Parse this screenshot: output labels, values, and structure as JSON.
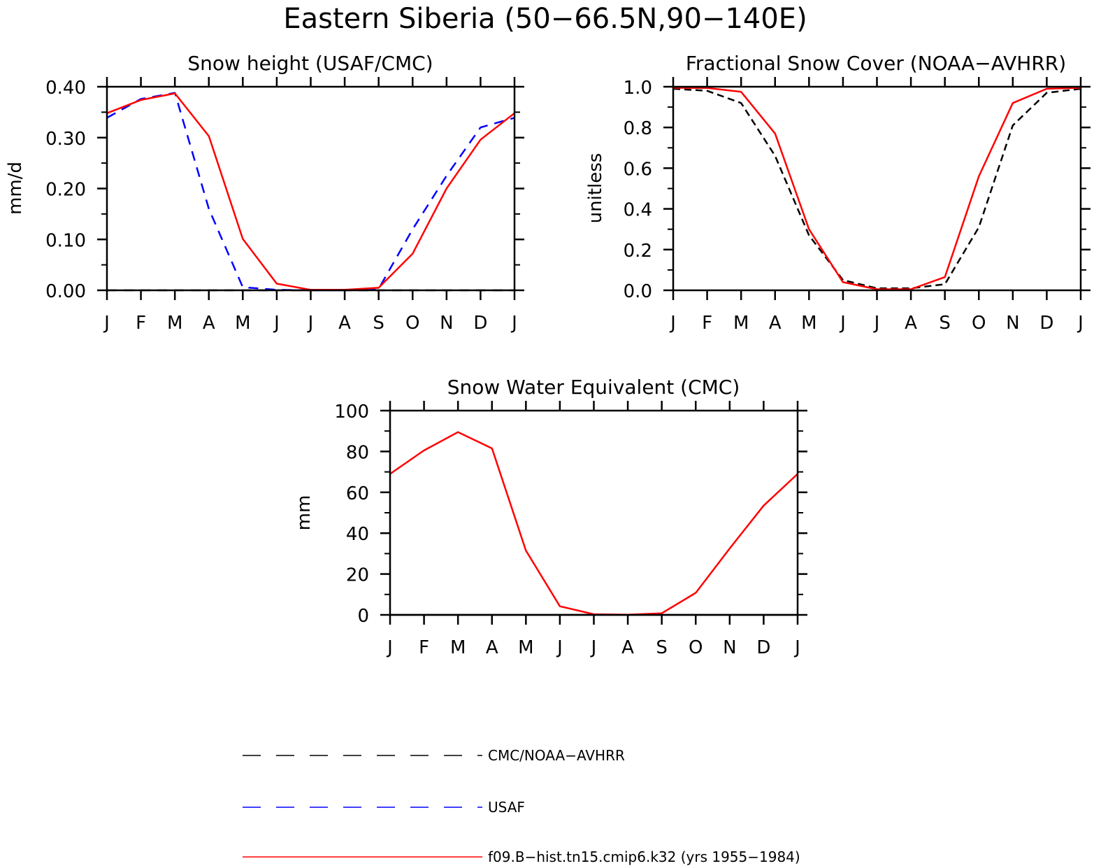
{
  "figure_title": "Eastern Siberia (50−66.5N,90−140E)",
  "colors": {
    "obs_cmc": "#000000",
    "obs_usaf": "#0000ff",
    "model": "#ff0000"
  },
  "legend": [
    {
      "label": "CMC/NOAA−AVHRR",
      "color": "#000000",
      "dash": "long"
    },
    {
      "label": "USAF",
      "color": "#0000ff",
      "dash": "long"
    },
    {
      "label": "f09.B−hist.tn15.cmip6.k32 (yrs 1955−1984)",
      "color": "#ff0000",
      "dash": "solid"
    }
  ],
  "chart_data": [
    {
      "type": "line",
      "title": "Snow height (USAF/CMC)",
      "xlabel": "",
      "ylabel": "mm/d",
      "categories": [
        "J",
        "F",
        "M",
        "A",
        "M",
        "J",
        "J",
        "A",
        "S",
        "O",
        "N",
        "D",
        "J"
      ],
      "ylim": [
        0,
        0.4
      ],
      "yticks": [
        "0.00",
        "0.10",
        "0.20",
        "0.30",
        "0.40"
      ],
      "yminor_step": 0.05,
      "grid": false,
      "series": [
        {
          "name": "CMC/NOAA−AVHRR",
          "color": "#000000",
          "dash": "long",
          "values": [
            0,
            0,
            0,
            0,
            0,
            0,
            0,
            0,
            0,
            0,
            0,
            0,
            0
          ]
        },
        {
          "name": "USAF",
          "color": "#0000ff",
          "dash": "long",
          "values": [
            0.339,
            0.376,
            0.388,
            0.16,
            0.006,
            0.001,
            0,
            0,
            0.003,
            0.12,
            0.225,
            0.32,
            0.339
          ]
        },
        {
          "name": "f09.B−hist.tn15.cmip6.k32 (yrs 1955−1984)",
          "color": "#ff0000",
          "dash": "solid",
          "values": [
            0.348,
            0.374,
            0.387,
            0.303,
            0.101,
            0.013,
            0.001,
            0.001,
            0.005,
            0.072,
            0.2,
            0.296,
            0.348
          ]
        }
      ]
    },
    {
      "type": "line",
      "title": "Fractional Snow Cover (NOAA−AVHRR)",
      "xlabel": "",
      "ylabel": "unitless",
      "categories": [
        "J",
        "F",
        "M",
        "A",
        "M",
        "J",
        "J",
        "A",
        "S",
        "O",
        "N",
        "D",
        "J"
      ],
      "ylim": [
        0,
        1.0
      ],
      "yticks": [
        "0.0",
        "0.2",
        "0.4",
        "0.6",
        "0.8",
        "1.0"
      ],
      "yminor_step": 0.1,
      "grid": false,
      "series": [
        {
          "name": "CMC/NOAA−AVHRR",
          "color": "#000000",
          "dash": "short",
          "values": [
            0.99,
            0.98,
            0.92,
            0.66,
            0.27,
            0.05,
            0.01,
            0.01,
            0.03,
            0.31,
            0.81,
            0.97,
            0.99
          ]
        },
        {
          "name": "f09.B−hist.tn15.cmip6.k32 (yrs 1955−1984)",
          "color": "#ff0000",
          "dash": "solid",
          "values": [
            0.995,
            0.994,
            0.975,
            0.77,
            0.3,
            0.04,
            0.005,
            0.005,
            0.065,
            0.56,
            0.92,
            0.99,
            0.995
          ]
        }
      ]
    },
    {
      "type": "line",
      "title": "Snow Water Equivalent (CMC)",
      "xlabel": "",
      "ylabel": "mm",
      "categories": [
        "J",
        "F",
        "M",
        "A",
        "M",
        "J",
        "J",
        "A",
        "S",
        "O",
        "N",
        "D",
        "J"
      ],
      "ylim": [
        0,
        100
      ],
      "yticks": [
        "0",
        "20",
        "40",
        "60",
        "80",
        "100"
      ],
      "yminor_step": 10,
      "grid": false,
      "series": [
        {
          "name": "CMC/NOAA−AVHRR",
          "color": "#000000",
          "dash": "solid",
          "values": [
            0,
            0,
            0,
            0,
            0,
            0,
            0,
            0,
            0,
            0,
            0,
            0,
            0
          ]
        },
        {
          "name": "f09.B−hist.tn15.cmip6.k32 (yrs 1955−1984)",
          "color": "#ff0000",
          "dash": "solid",
          "values": [
            69,
            80.5,
            89.5,
            81.5,
            31.5,
            4.2,
            0.3,
            0.1,
            0.8,
            10.8,
            32.5,
            53.5,
            69
          ]
        }
      ]
    }
  ]
}
